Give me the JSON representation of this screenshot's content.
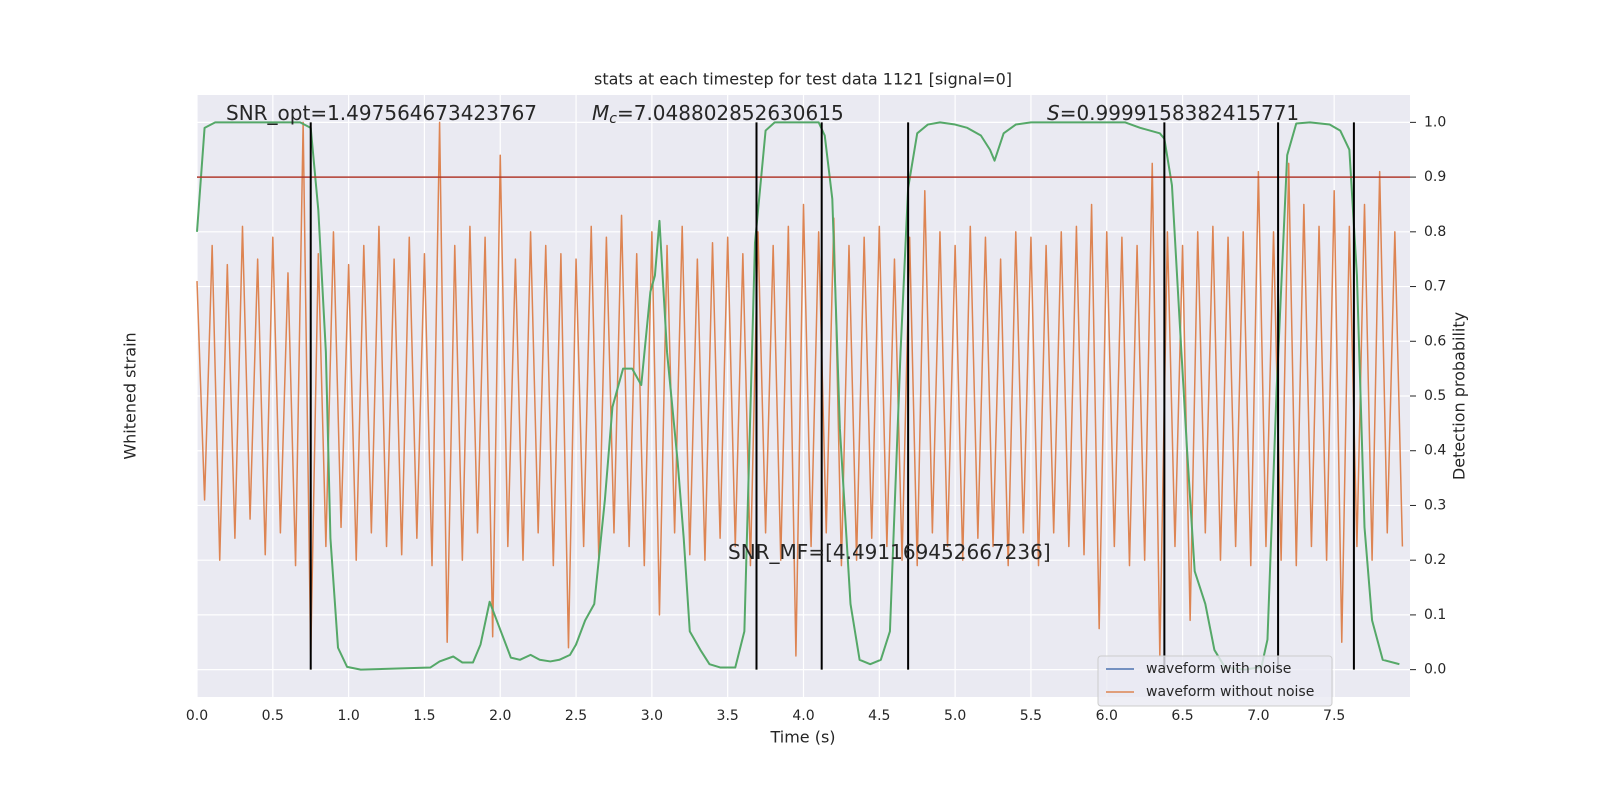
{
  "chart_data": {
    "type": "line",
    "title": "stats at each timestep for test data 1121 [signal=0]",
    "x_label": "Time (s)",
    "y_label": "Whitened strain",
    "y2_label": "Detection probability",
    "xlim": [
      0,
      8.0
    ],
    "ylim": [
      -1.1,
      1.1
    ],
    "y2lim": [
      -0.05,
      1.05
    ],
    "xticks": [
      {
        "value": 0,
        "label": "0.0"
      },
      0.5,
      {
        "value": 1,
        "label": "1.0"
      },
      1.5,
      {
        "value": 2,
        "label": "2.0"
      },
      2.5,
      {
        "value": 3,
        "label": "3.0"
      },
      3.5,
      {
        "value": 4,
        "label": "4.0"
      },
      4.5,
      {
        "value": 5,
        "label": "5.0"
      },
      5.5,
      {
        "value": 6,
        "label": "6.0"
      },
      6.5,
      {
        "value": 7,
        "label": "7.0"
      },
      7.5
    ],
    "y2ticks": [
      {
        "value": 0,
        "label": "0.0"
      },
      0.1,
      0.2,
      0.3,
      0.4,
      0.5,
      0.6,
      0.7,
      0.8,
      0.9,
      {
        "value": 1,
        "label": "1.0"
      }
    ],
    "grid": true,
    "legend": "lower right",
    "series": [
      {
        "name": "waveform with noise",
        "color": "#4c72b0"
      },
      {
        "name": "waveform without noise",
        "color": "#dd8452",
        "x": [
          0,
          0.05,
          0.1,
          0.15,
          0.2,
          0.25,
          0.3,
          0.35,
          0.4,
          0.45,
          0.5,
          0.55,
          0.6,
          0.65,
          0.7,
          0.75,
          0.8,
          0.85,
          0.9,
          0.95,
          1,
          1.05,
          1.1,
          1.15,
          1.2,
          1.25,
          1.3,
          1.35,
          1.4,
          1.45,
          1.5,
          1.55,
          1.6,
          1.65,
          1.7,
          1.75,
          1.8,
          1.85,
          1.9,
          1.95,
          2,
          2.05,
          2.1,
          2.15,
          2.2,
          2.25,
          2.3,
          2.35,
          2.4,
          2.45,
          2.5,
          2.55,
          2.6,
          2.65,
          2.7,
          2.75,
          2.8,
          2.85,
          2.9,
          2.95,
          3,
          3.05,
          3.1,
          3.15,
          3.2,
          3.25,
          3.3,
          3.35,
          3.4,
          3.45,
          3.5,
          3.55,
          3.6,
          3.65,
          3.7,
          3.75,
          3.8,
          3.85,
          3.9,
          3.95,
          4,
          4.05,
          4.1,
          4.15,
          4.2,
          4.25,
          4.3,
          4.35,
          4.4,
          4.45,
          4.5,
          4.55,
          4.6,
          4.65,
          4.7,
          4.75,
          4.8,
          4.85,
          4.9,
          4.95,
          5,
          5.05,
          5.1,
          5.15,
          5.2,
          5.25,
          5.3,
          5.35,
          5.4,
          5.45,
          5.5,
          5.55,
          5.6,
          5.65,
          5.7,
          5.75,
          5.8,
          5.85,
          5.9,
          5.95,
          6,
          6.05,
          6.1,
          6.15,
          6.2,
          6.25,
          6.3,
          6.35,
          6.4,
          6.45,
          6.5,
          6.55,
          6.6,
          6.65,
          6.7,
          6.75,
          6.8,
          6.85,
          6.9,
          6.95,
          7,
          7.05,
          7.1,
          7.15,
          7.2,
          7.25,
          7.3,
          7.35,
          7.4,
          7.45,
          7.5,
          7.55,
          7.6,
          7.65,
          7.7,
          7.75,
          7.8,
          7.85,
          7.9,
          7.95
        ],
        "values": [
          0.42,
          -0.38,
          0.55,
          -0.6,
          0.48,
          -0.52,
          0.62,
          -0.45,
          0.5,
          -0.58,
          0.58,
          -0.5,
          0.45,
          -0.62,
          1.0,
          -0.95,
          0.52,
          -0.55,
          0.6,
          -0.48,
          0.48,
          -0.6,
          0.55,
          -0.5,
          0.62,
          -0.55,
          0.5,
          -0.58,
          0.58,
          -0.52,
          0.52,
          -0.62,
          1.0,
          -0.9,
          0.55,
          -0.6,
          0.62,
          -0.5,
          0.58,
          -0.88,
          0.88,
          -0.55,
          0.5,
          -0.6,
          0.6,
          -0.5,
          0.55,
          -0.62,
          0.52,
          -0.92,
          0.5,
          -0.55,
          0.62,
          -0.6,
          0.58,
          -0.5,
          0.66,
          -0.55,
          0.52,
          -0.62,
          0.6,
          -0.8,
          0.55,
          -0.5,
          0.62,
          -0.58,
          0.5,
          -0.6,
          0.56,
          -0.52,
          0.58,
          -0.55,
          0.52,
          -0.62,
          0.6,
          -0.5,
          0.55,
          -0.6,
          0.62,
          -0.95,
          0.7,
          -0.55,
          0.6,
          -0.5,
          0.65,
          -0.62,
          0.55,
          -0.6,
          0.58,
          -0.52,
          0.62,
          -0.55,
          0.5,
          -0.6,
          0.58,
          -0.62,
          0.75,
          -0.5,
          0.6,
          -0.55,
          0.55,
          -0.6,
          0.62,
          -0.52,
          0.58,
          -0.55,
          0.5,
          -0.62,
          0.6,
          -0.5,
          0.58,
          -0.62,
          0.55,
          -0.5,
          0.6,
          -0.55,
          0.62,
          -0.58,
          0.7,
          -0.85,
          0.6,
          -0.55,
          0.58,
          -0.62,
          0.55,
          -0.6,
          0.85,
          -0.95,
          0.6,
          -0.55,
          0.55,
          -0.82,
          0.6,
          -0.5,
          0.62,
          -0.6,
          0.58,
          -0.55,
          0.6,
          -0.62,
          0.82,
          -0.55,
          0.6,
          -0.6,
          0.85,
          -0.62,
          0.7,
          -0.55,
          0.62,
          -0.6,
          0.75,
          -0.9,
          0.62,
          -0.55,
          0.7,
          -0.6,
          0.82,
          -0.5,
          0.6,
          -0.55
        ]
      },
      {
        "color": "#55a868",
        "axis": "y2",
        "x": [
          0,
          0.05,
          0.12,
          0.68,
          0.75,
          0.8,
          0.85,
          0.88,
          0.93,
          0.99,
          1.08,
          1.54,
          1.6,
          1.69,
          1.75,
          1.82,
          1.87,
          1.93,
          2.0,
          2.07,
          2.13,
          2.2,
          2.26,
          2.33,
          2.39,
          2.46,
          2.5,
          2.56,
          2.62,
          2.69,
          2.74,
          2.81,
          2.87,
          2.93,
          2.99,
          3.02,
          3.05,
          3.1,
          3.17,
          3.21,
          3.25,
          3.32,
          3.38,
          3.45,
          3.55,
          3.61,
          3.68,
          3.75,
          3.81,
          4.1,
          4.14,
          4.19,
          4.24,
          4.31,
          4.37,
          4.44,
          4.51,
          4.57,
          4.64,
          4.69,
          4.75,
          4.82,
          4.9,
          5.0,
          5.08,
          5.17,
          5.23,
          5.26,
          5.32,
          5.4,
          5.5,
          6.12,
          6.22,
          6.35,
          6.38,
          6.43,
          6.48,
          6.53,
          6.58,
          6.65,
          6.71,
          6.78,
          6.91,
          7.02,
          7.06,
          7.12,
          7.19,
          7.25,
          7.34,
          7.47,
          7.54,
          7.6,
          7.65,
          7.7,
          7.75,
          7.82,
          7.93
        ],
        "values": [
          0.8,
          0.99,
          1.0,
          1.0,
          0.99,
          0.84,
          0.58,
          0.24,
          0.04,
          0.005,
          0,
          0.004,
          0.015,
          0.024,
          0.013,
          0.013,
          0.046,
          0.124,
          0.073,
          0.022,
          0.018,
          0.027,
          0.018,
          0.015,
          0.018,
          0.027,
          0.046,
          0.09,
          0.12,
          0.31,
          0.48,
          0.55,
          0.55,
          0.52,
          0.69,
          0.72,
          0.82,
          0.58,
          0.38,
          0.24,
          0.07,
          0.036,
          0.01,
          0.004,
          0.004,
          0.07,
          0.78,
          0.985,
          1.0,
          1.0,
          0.976,
          0.86,
          0.44,
          0.12,
          0.018,
          0.01,
          0.018,
          0.07,
          0.58,
          0.88,
          0.98,
          0.996,
          1.0,
          0.996,
          0.99,
          0.976,
          0.95,
          0.93,
          0.98,
          0.996,
          1.0,
          1.0,
          0.99,
          0.98,
          0.97,
          0.885,
          0.64,
          0.4,
          0.18,
          0.12,
          0.036,
          0.004,
          0,
          0.005,
          0.055,
          0.51,
          0.94,
          0.998,
          1.0,
          0.996,
          0.985,
          0.95,
          0.72,
          0.26,
          0.09,
          0.018,
          0.01
        ]
      }
    ],
    "hlines": [
      0.9
    ],
    "hline_color": "#b03a2e",
    "vlines": [
      0.75,
      3.69,
      4.12,
      4.69,
      6.38,
      7.13,
      7.63
    ],
    "vline_color": "#000000",
    "annotations": [
      {
        "text": "SNR_opt=1.497564673423767"
      },
      {
        "symbol": "M",
        "subscript": "c",
        "text": "=7.048802852630615"
      },
      {
        "symbol": "S",
        "text": "=0.9999158382415771"
      },
      {
        "text": "SNR_MF=[4.491169452667236]"
      }
    ]
  }
}
